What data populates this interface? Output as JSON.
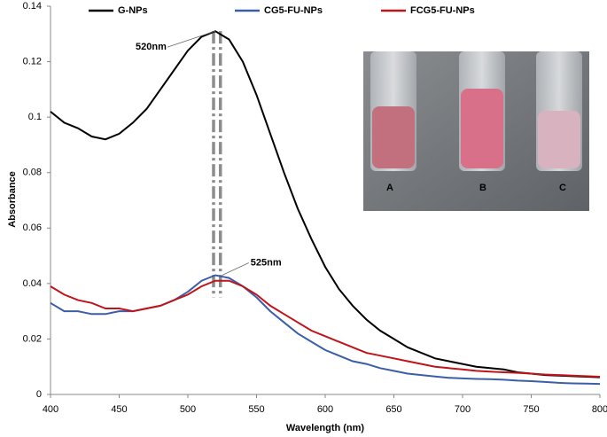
{
  "chart_data": {
    "type": "line",
    "xlabel": "Wavelength (nm)",
    "ylabel": "Absorbance",
    "x": [
      400,
      410,
      420,
      430,
      440,
      450,
      460,
      470,
      480,
      490,
      500,
      510,
      520,
      530,
      540,
      550,
      560,
      570,
      580,
      590,
      600,
      610,
      620,
      630,
      640,
      650,
      660,
      670,
      680,
      690,
      700,
      710,
      720,
      730,
      740,
      750,
      760,
      770,
      780,
      790,
      800
    ],
    "series": [
      {
        "name": "G-NPs",
        "color": "#000000",
        "values": [
          0.102,
          0.098,
          0.096,
          0.093,
          0.092,
          0.094,
          0.098,
          0.103,
          0.11,
          0.117,
          0.124,
          0.129,
          0.131,
          0.128,
          0.12,
          0.108,
          0.094,
          0.08,
          0.067,
          0.056,
          0.046,
          0.038,
          0.032,
          0.027,
          0.023,
          0.02,
          0.017,
          0.015,
          0.013,
          0.012,
          0.011,
          0.01,
          0.0095,
          0.009,
          0.008,
          0.0075,
          0.007,
          0.0068,
          0.0066,
          0.0064,
          0.0062
        ]
      },
      {
        "name": "CG5-FU-NPs",
        "color": "#3a5ea8",
        "values": [
          0.033,
          0.03,
          0.03,
          0.029,
          0.029,
          0.03,
          0.03,
          0.031,
          0.032,
          0.034,
          0.037,
          0.041,
          0.043,
          0.042,
          0.039,
          0.035,
          0.03,
          0.026,
          0.022,
          0.019,
          0.016,
          0.014,
          0.012,
          0.011,
          0.0095,
          0.0085,
          0.0075,
          0.007,
          0.0065,
          0.006,
          0.0058,
          0.0056,
          0.0055,
          0.0053,
          0.005,
          0.0048,
          0.0045,
          0.0042,
          0.004,
          0.0039,
          0.0038
        ]
      },
      {
        "name": "FCG5-FU-NPs",
        "color": "#c0141a",
        "values": [
          0.039,
          0.036,
          0.034,
          0.033,
          0.031,
          0.031,
          0.03,
          0.031,
          0.032,
          0.034,
          0.036,
          0.039,
          0.041,
          0.041,
          0.039,
          0.036,
          0.032,
          0.029,
          0.026,
          0.023,
          0.021,
          0.019,
          0.017,
          0.015,
          0.014,
          0.013,
          0.012,
          0.011,
          0.01,
          0.0095,
          0.009,
          0.0085,
          0.0082,
          0.008,
          0.0078,
          0.0075,
          0.0072,
          0.007,
          0.0068,
          0.0066,
          0.0064
        ]
      }
    ],
    "annotations": [
      {
        "text": "520nm",
        "x": 520,
        "y": 0.131
      },
      {
        "text": "525nm",
        "x": 525,
        "y": 0.043
      }
    ],
    "inset_labels": [
      "A",
      "B",
      "C"
    ],
    "xlim": [
      400,
      800
    ],
    "xticks": [
      400,
      450,
      500,
      550,
      600,
      650,
      700,
      750,
      800
    ],
    "ylim": [
      0,
      0.14
    ],
    "yticks": [
      0,
      0.02,
      0.04,
      0.06,
      0.08,
      0.1,
      0.12,
      0.14
    ],
    "grid": false
  }
}
